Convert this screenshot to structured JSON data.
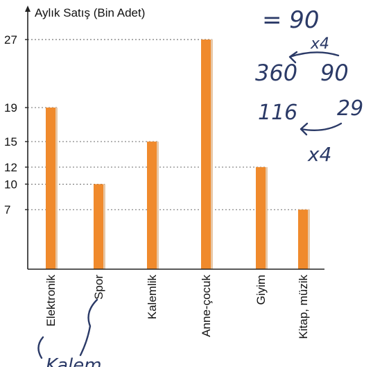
{
  "chart_data": {
    "type": "bar",
    "ylabel": "Aylık Satış (Bin Adet)",
    "categories": [
      "Elektronik",
      "Spor",
      "Kalemlik",
      "Anne-çocuk",
      "Giyim",
      "Kitap, müzik"
    ],
    "values": [
      19,
      10,
      15,
      27,
      12,
      7
    ],
    "yticks": [
      7,
      10,
      12,
      15,
      19,
      27
    ],
    "ylim": [
      0,
      27
    ],
    "grid": "dashed at each value",
    "bar_color": "#f08a2c",
    "bar_shadow_color": "#e7c7a6"
  },
  "annotations": {
    "line1": "= 90",
    "mult_top": "x4",
    "line2_left": "360",
    "line2_right": "90",
    "line3_left": "116",
    "line3_right": "29",
    "mult_bottom": "x4",
    "bottom_scribble": "Kalem"
  },
  "colors": {
    "ink": "#2b3a67",
    "axis": "#222222"
  }
}
